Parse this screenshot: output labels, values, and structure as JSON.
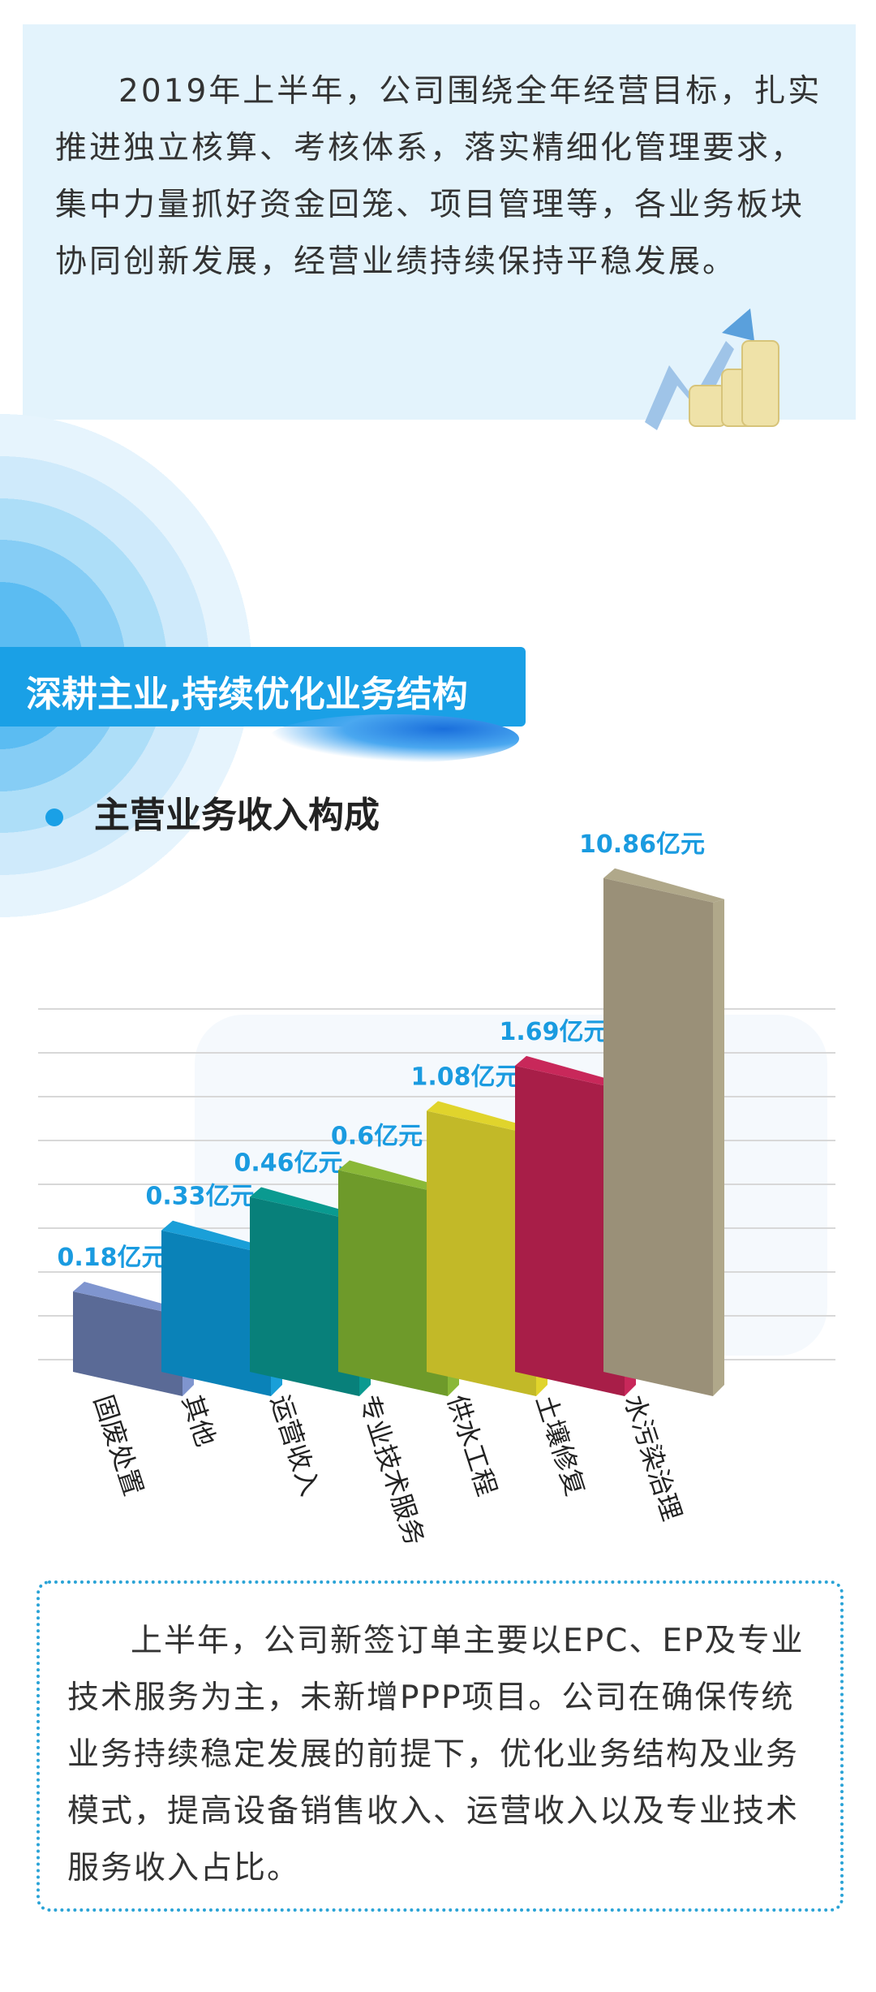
{
  "intro": {
    "text": "2019年上半年，公司围绕全年经营目标，扎实推进独立核算、考核体系，落实精细化管理要求，集中力量抓好资金回笼、项目管理等，各业务板块协同创新发展，经营业绩持续保持平稳发展。"
  },
  "section": {
    "banner": "深耕主业,持续优化业务结构",
    "subtitle": "主营业务收入构成"
  },
  "chart_data": {
    "type": "bar",
    "title": "主营业务收入构成",
    "categories": [
      "固废处置",
      "其他",
      "运营收入",
      "专业技术服务",
      "供水工程",
      "土壤修复",
      "水污染治理"
    ],
    "values": [
      0.18,
      0.33,
      0.46,
      0.6,
      1.08,
      1.69,
      10.86
    ],
    "data_labels": [
      "0.18亿元",
      "0.33亿元",
      "0.46亿元",
      "0.6亿元",
      "1.08亿元",
      "1.69亿元",
      "10.86亿元"
    ],
    "unit": "亿元",
    "scale": "non-linear (3D decorative)",
    "grid": true,
    "colors": [
      "#5a6a96",
      "#0a82b8",
      "#08807a",
      "#6e9a2a",
      "#c2b928",
      "#a81e48",
      "#9a9078"
    ],
    "side_colors": [
      "#7f95cf",
      "#1a9fd8",
      "#0a9a90",
      "#8ab838",
      "#e0d42c",
      "#c8285a",
      "#b0a88a"
    ],
    "label_color": "#1a9be0"
  },
  "outro": {
    "text": "上半年，公司新签订单主要以EPC、EP及专业技术服务为主，未新增PPP项目。公司在确保传统业务持续稳定发展的前提下，优化业务结构及业务模式，提高设备销售收入、运营收入以及专业技术服务收入占比。"
  }
}
